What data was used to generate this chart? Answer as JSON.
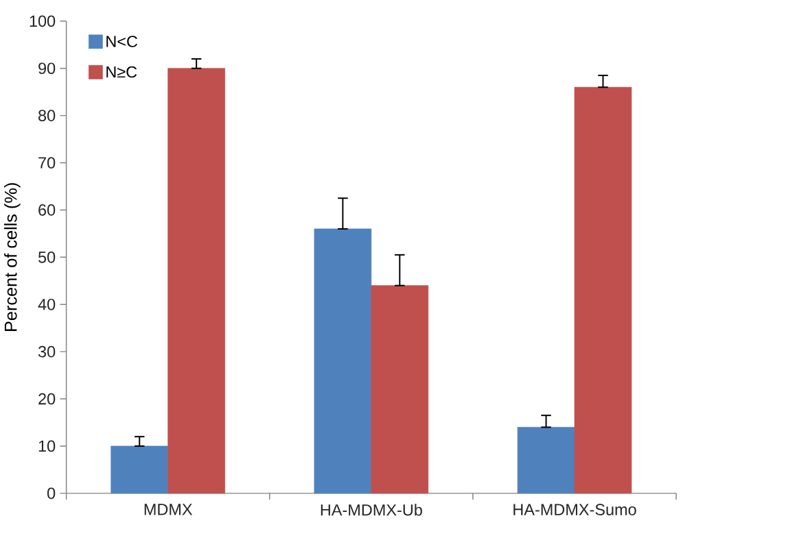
{
  "chart_data": {
    "type": "bar",
    "ylabel": "Percent of cells (%)",
    "categories": [
      "MDMX",
      "HA-MDMX-Ub",
      "HA-MDMX-Sumo"
    ],
    "series": [
      {
        "name": "N<C",
        "color": "#4f81bd",
        "values": [
          10,
          56,
          14
        ],
        "errors": [
          [
            10,
            12
          ],
          [
            56,
            62.5
          ],
          [
            14,
            16.5
          ]
        ]
      },
      {
        "name": "N≥C",
        "color": "#c0504d",
        "values": [
          90,
          44,
          86
        ],
        "errors": [
          [
            90,
            92
          ],
          [
            44,
            50.5
          ],
          [
            86,
            88.5
          ]
        ]
      }
    ],
    "ylim": [
      0,
      100
    ],
    "yticks": [
      0,
      10,
      20,
      30,
      40,
      50,
      60,
      70,
      80,
      90,
      100
    ],
    "grid": false,
    "legend": "top left"
  }
}
